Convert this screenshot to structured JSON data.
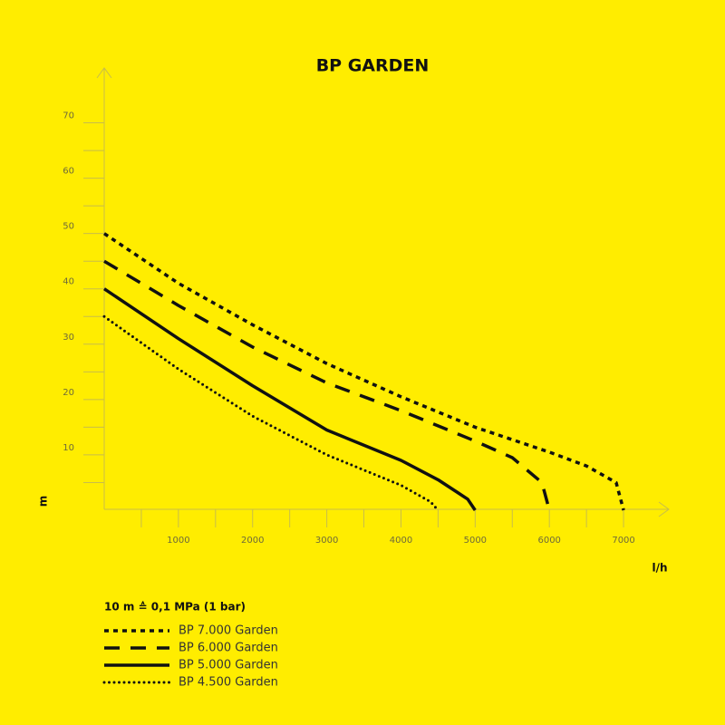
{
  "chart_data": {
    "type": "line",
    "title": "BP GARDEN",
    "x_label": "l/h",
    "y_label": "m",
    "annotation": "10 m ≙ 0,1 MPa (1 bar)",
    "xlim": [
      0,
      7500
    ],
    "ylim": [
      0,
      75
    ],
    "xticks": [
      1000,
      2000,
      3000,
      4000,
      5000,
      6000,
      7000
    ],
    "xminorticks": [
      500,
      1500,
      2500,
      3500,
      4500,
      5500,
      6500
    ],
    "yticks": [
      10,
      20,
      30,
      40,
      50,
      60,
      70
    ],
    "yminorticks": [
      5,
      15,
      25,
      35,
      45,
      55,
      65
    ],
    "series": [
      {
        "name": "BP 7.000 Garden",
        "color": "#111111",
        "style": "short-dash",
        "x": [
          0,
          1000,
          2000,
          3000,
          4000,
          5000,
          6000,
          6500,
          6900,
          7000
        ],
        "values": [
          50,
          41,
          33.5,
          26.5,
          20.5,
          15,
          10.5,
          8,
          5,
          0
        ]
      },
      {
        "name": "BP 6.000 Garden",
        "color": "#111111",
        "style": "long-dash",
        "x": [
          0,
          1000,
          2000,
          3000,
          4000,
          5000,
          5500,
          5900,
          6000
        ],
        "values": [
          45,
          37,
          29.5,
          23,
          18,
          12.5,
          9.5,
          5,
          0
        ]
      },
      {
        "name": "BP 5.000 Garden",
        "color": "#111111",
        "style": "solid",
        "x": [
          0,
          1000,
          2000,
          3000,
          4000,
          4500,
          4900,
          5000
        ],
        "values": [
          40,
          31,
          22.5,
          14.5,
          9,
          5.5,
          2,
          0
        ]
      },
      {
        "name": "BP 4.500 Garden",
        "color": "#111111",
        "style": "dotted",
        "x": [
          0,
          1000,
          2000,
          3000,
          4000,
          4400,
          4500
        ],
        "values": [
          35,
          25.5,
          17,
          10,
          4.5,
          1.5,
          0
        ]
      }
    ]
  }
}
